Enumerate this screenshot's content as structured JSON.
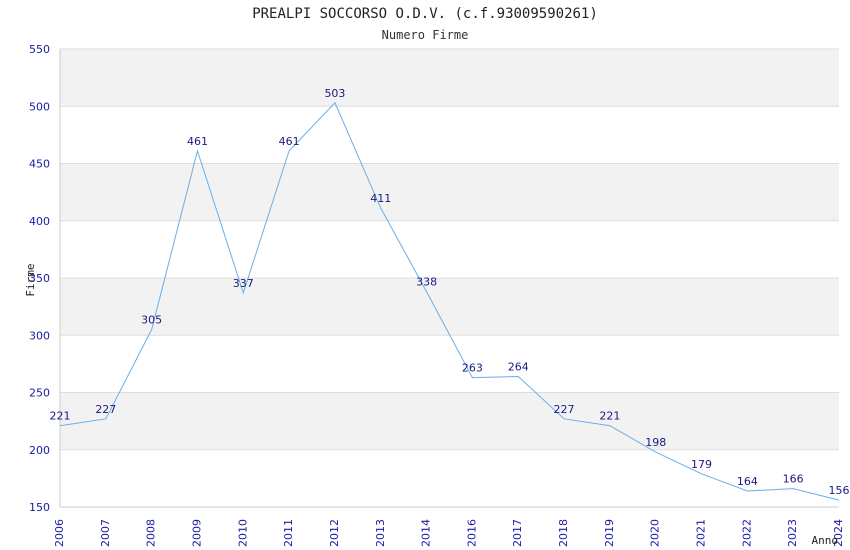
{
  "chart_data": {
    "type": "line",
    "title": "PREALPI SOCCORSO O.D.V. (c.f.93009590261)",
    "subtitle": "Numero Firme",
    "xlabel": "Anno",
    "ylabel": "Firme",
    "categories": [
      "2006",
      "2007",
      "2008",
      "2009",
      "2010",
      "2011",
      "2012",
      "2013",
      "2014",
      "2016",
      "2017",
      "2018",
      "2019",
      "2020",
      "2021",
      "2022",
      "2023",
      "2024"
    ],
    "series": [
      {
        "values": [
          221,
          227,
          305,
          461,
          337,
          461,
          503,
          411,
          338,
          263,
          264,
          227,
          221,
          198,
          179,
          164,
          166,
          156
        ]
      }
    ],
    "ylim": [
      150,
      550
    ],
    "yticks": [
      "150",
      "200",
      "250",
      "300",
      "350",
      "400",
      "450",
      "500",
      "550"
    ],
    "grid": "horizontal bands",
    "colors": {
      "line": "#6aaee8",
      "band": "#f2f2f2",
      "tick": "#1a1aa6"
    }
  }
}
